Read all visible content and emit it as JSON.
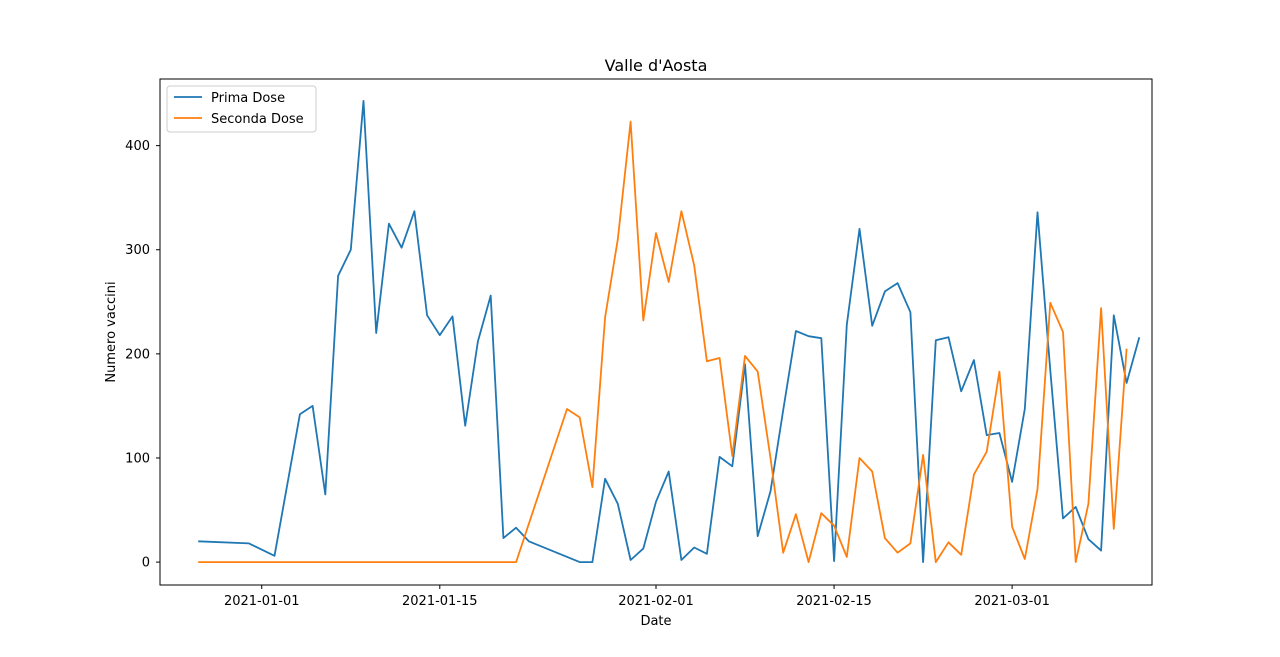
{
  "chart_data": {
    "type": "line",
    "title": "Valle d'Aosta",
    "xlabel": "Date",
    "ylabel": "Numero vaccini",
    "xlim": [
      "2020-12-24",
      "2021-03-12"
    ],
    "ylim": [
      -22,
      464
    ],
    "x_ticks": [
      {
        "date": "2021-01-01",
        "label": "2021-01-01"
      },
      {
        "date": "2021-01-15",
        "label": "2021-01-15"
      },
      {
        "date": "2021-02-01",
        "label": "2021-02-01"
      },
      {
        "date": "2021-02-15",
        "label": "2021-02-15"
      },
      {
        "date": "2021-03-01",
        "label": "2021-03-01"
      }
    ],
    "y_ticks": [
      0,
      100,
      200,
      300,
      400
    ],
    "grid": false,
    "legend": "top-left",
    "series": [
      {
        "name": "Prima Dose",
        "color": "#1f77b4",
        "points": [
          [
            "2020-12-27",
            20
          ],
          [
            "2020-12-31",
            18
          ],
          [
            "2021-01-02",
            6
          ],
          [
            "2021-01-04",
            142
          ],
          [
            "2021-01-05",
            150
          ],
          [
            "2021-01-06",
            65
          ],
          [
            "2021-01-07",
            275
          ],
          [
            "2021-01-08",
            300
          ],
          [
            "2021-01-09",
            443
          ],
          [
            "2021-01-10",
            220
          ],
          [
            "2021-01-11",
            325
          ],
          [
            "2021-01-12",
            302
          ],
          [
            "2021-01-13",
            337
          ],
          [
            "2021-01-14",
            237
          ],
          [
            "2021-01-15",
            218
          ],
          [
            "2021-01-16",
            236
          ],
          [
            "2021-01-17",
            131
          ],
          [
            "2021-01-18",
            212
          ],
          [
            "2021-01-19",
            256
          ],
          [
            "2021-01-20",
            23
          ],
          [
            "2021-01-21",
            33
          ],
          [
            "2021-01-22",
            20
          ],
          [
            "2021-01-26",
            0
          ],
          [
            "2021-01-27",
            0
          ],
          [
            "2021-01-28",
            80
          ],
          [
            "2021-01-29",
            56
          ],
          [
            "2021-01-30",
            2
          ],
          [
            "2021-01-31",
            13
          ],
          [
            "2021-02-01",
            58
          ],
          [
            "2021-02-02",
            87
          ],
          [
            "2021-02-03",
            2
          ],
          [
            "2021-02-04",
            14
          ],
          [
            "2021-02-05",
            8
          ],
          [
            "2021-02-06",
            101
          ],
          [
            "2021-02-07",
            92
          ],
          [
            "2021-02-08",
            190
          ],
          [
            "2021-02-09",
            25
          ],
          [
            "2021-02-10",
            68
          ],
          [
            "2021-02-11",
            146
          ],
          [
            "2021-02-12",
            222
          ],
          [
            "2021-02-13",
            217
          ],
          [
            "2021-02-14",
            215
          ],
          [
            "2021-02-15",
            1
          ],
          [
            "2021-02-16",
            228
          ],
          [
            "2021-02-17",
            320
          ],
          [
            "2021-02-18",
            227
          ],
          [
            "2021-02-19",
            260
          ],
          [
            "2021-02-20",
            268
          ],
          [
            "2021-02-21",
            240
          ],
          [
            "2021-02-22",
            0
          ],
          [
            "2021-02-23",
            213
          ],
          [
            "2021-02-24",
            216
          ],
          [
            "2021-02-25",
            164
          ],
          [
            "2021-02-26",
            194
          ],
          [
            "2021-02-27",
            122
          ],
          [
            "2021-02-28",
            124
          ],
          [
            "2021-03-01",
            77
          ],
          [
            "2021-03-02",
            147
          ],
          [
            "2021-03-03",
            336
          ],
          [
            "2021-03-04",
            184
          ],
          [
            "2021-03-05",
            42
          ],
          [
            "2021-03-06",
            53
          ],
          [
            "2021-03-07",
            22
          ],
          [
            "2021-03-08",
            11
          ],
          [
            "2021-03-09",
            237
          ],
          [
            "2021-03-10",
            172
          ],
          [
            "2021-03-11",
            216
          ]
        ]
      },
      {
        "name": "Seconda Dose",
        "color": "#ff7f0e",
        "points": [
          [
            "2020-12-27",
            0
          ],
          [
            "2021-01-21",
            0
          ],
          [
            "2021-01-25",
            147
          ],
          [
            "2021-01-26",
            139
          ],
          [
            "2021-01-27",
            72
          ],
          [
            "2021-01-28",
            235
          ],
          [
            "2021-01-29",
            310
          ],
          [
            "2021-01-30",
            423
          ],
          [
            "2021-01-31",
            232
          ],
          [
            "2021-02-01",
            316
          ],
          [
            "2021-02-02",
            269
          ],
          [
            "2021-02-03",
            337
          ],
          [
            "2021-02-04",
            285
          ],
          [
            "2021-02-05",
            193
          ],
          [
            "2021-02-06",
            196
          ],
          [
            "2021-02-07",
            102
          ],
          [
            "2021-02-08",
            198
          ],
          [
            "2021-02-09",
            183
          ],
          [
            "2021-02-10",
            100
          ],
          [
            "2021-02-11",
            9
          ],
          [
            "2021-02-12",
            46
          ],
          [
            "2021-02-13",
            0
          ],
          [
            "2021-02-14",
            47
          ],
          [
            "2021-02-15",
            35
          ],
          [
            "2021-02-16",
            5
          ],
          [
            "2021-02-17",
            100
          ],
          [
            "2021-02-18",
            87
          ],
          [
            "2021-02-19",
            23
          ],
          [
            "2021-02-20",
            9
          ],
          [
            "2021-02-21",
            18
          ],
          [
            "2021-02-22",
            103
          ],
          [
            "2021-02-23",
            0
          ],
          [
            "2021-02-24",
            19
          ],
          [
            "2021-02-25",
            7
          ],
          [
            "2021-02-26",
            84
          ],
          [
            "2021-02-27",
            106
          ],
          [
            "2021-02-28",
            183
          ],
          [
            "2021-03-01",
            34
          ],
          [
            "2021-03-02",
            3
          ],
          [
            "2021-03-03",
            70
          ],
          [
            "2021-03-04",
            249
          ],
          [
            "2021-03-05",
            221
          ],
          [
            "2021-03-06",
            0
          ],
          [
            "2021-03-07",
            56
          ],
          [
            "2021-03-08",
            244
          ],
          [
            "2021-03-09",
            32
          ],
          [
            "2021-03-10",
            205
          ]
        ]
      }
    ]
  }
}
